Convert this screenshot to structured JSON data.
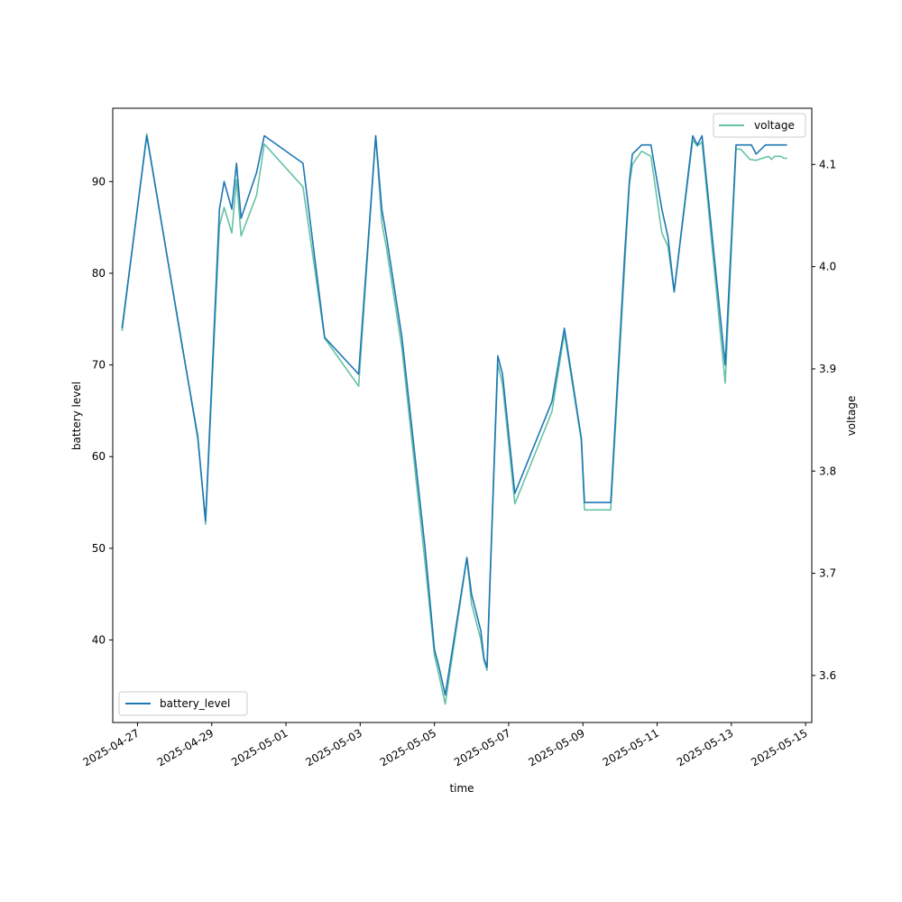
{
  "chart_data": {
    "type": "line",
    "xlabel": "time",
    "ylabel_left": "battery level",
    "ylabel_right": "voltage",
    "x_range": [
      "2025-04-26T08:00",
      "2025-05-15T04:00"
    ],
    "ylim_left": [
      31,
      98
    ],
    "ylim_right": [
      3.554,
      4.155
    ],
    "x_tick_labels": [
      "2025-04-27",
      "2025-04-29",
      "2025-05-01",
      "2025-05-03",
      "2025-05-05",
      "2025-05-07",
      "2025-05-09",
      "2025-05-11",
      "2025-05-13",
      "2025-05-15"
    ],
    "y_ticks_left": [
      40,
      50,
      60,
      70,
      80,
      90
    ],
    "y_ticks_right": [
      "3.6",
      "3.7",
      "3.8",
      "3.9",
      "4.0",
      "4.1"
    ],
    "grid": false,
    "series": [
      {
        "name": "battery_level",
        "axis": "left",
        "color": "#1f77b4",
        "legend_position": "lower-left",
        "points": [
          [
            "2025-04-26T14:00",
            74
          ],
          [
            "2025-04-27T06:00",
            95
          ],
          [
            "2025-04-28T05:00",
            72
          ],
          [
            "2025-04-28T08:00",
            69
          ],
          [
            "2025-04-28T15:00",
            62
          ],
          [
            "2025-04-28T20:00",
            53
          ],
          [
            "2025-04-29T05:00",
            87
          ],
          [
            "2025-04-29T08:00",
            90
          ],
          [
            "2025-04-29T13:00",
            87
          ],
          [
            "2025-04-29T16:00",
            92
          ],
          [
            "2025-04-29T19:00",
            86
          ],
          [
            "2025-04-30T05:00",
            91
          ],
          [
            "2025-04-30T10:00",
            95
          ],
          [
            "2025-05-01T11:00",
            92
          ],
          [
            "2025-05-02T01:00",
            73
          ],
          [
            "2025-05-02T23:00",
            69
          ],
          [
            "2025-05-03T10:00",
            95
          ],
          [
            "2025-05-03T14:00",
            87
          ],
          [
            "2025-05-03T17:00",
            84
          ],
          [
            "2025-05-04T03:00",
            73
          ],
          [
            "2025-05-04T18:00",
            50
          ],
          [
            "2025-05-05T00:00",
            39
          ],
          [
            "2025-05-05T03:00",
            37
          ],
          [
            "2025-05-05T07:00",
            34
          ],
          [
            "2025-05-05T21:00",
            49
          ],
          [
            "2025-05-06T00:00",
            45
          ],
          [
            "2025-05-06T06:00",
            41
          ],
          [
            "2025-05-06T08:00",
            38
          ],
          [
            "2025-05-06T10:00",
            37
          ],
          [
            "2025-05-06T17:00",
            71
          ],
          [
            "2025-05-06T20:00",
            69
          ],
          [
            "2025-05-07T04:00",
            56
          ],
          [
            "2025-05-08T04:00",
            66
          ],
          [
            "2025-05-08T12:00",
            74
          ],
          [
            "2025-05-08T23:00",
            62
          ],
          [
            "2025-05-09T01:00",
            55
          ],
          [
            "2025-05-09T18:00",
            55
          ],
          [
            "2025-05-10T03:00",
            82
          ],
          [
            "2025-05-10T06:00",
            90
          ],
          [
            "2025-05-10T08:00",
            93
          ],
          [
            "2025-05-10T14:00",
            94
          ],
          [
            "2025-05-10T20:00",
            94
          ],
          [
            "2025-05-11T03:00",
            87
          ],
          [
            "2025-05-11T07:00",
            84
          ],
          [
            "2025-05-11T11:00",
            78
          ],
          [
            "2025-05-11T23:00",
            95
          ],
          [
            "2025-05-12T02:00",
            94
          ],
          [
            "2025-05-12T05:00",
            95
          ],
          [
            "2025-05-12T20:00",
            70
          ],
          [
            "2025-05-13T03:00",
            94
          ],
          [
            "2025-05-13T13:00",
            94
          ],
          [
            "2025-05-13T16:00",
            93
          ],
          [
            "2025-05-13T22:00",
            94
          ],
          [
            "2025-05-14T12:00",
            94
          ]
        ]
      },
      {
        "name": "voltage",
        "axis": "right",
        "color": "#66c2a5",
        "legend_position": "upper-right",
        "points": [
          [
            "2025-04-26T14:00",
            3.937
          ],
          [
            "2025-04-27T06:00",
            4.13
          ],
          [
            "2025-04-28T05:00",
            3.92
          ],
          [
            "2025-04-28T08:00",
            3.895
          ],
          [
            "2025-04-28T15:00",
            3.835
          ],
          [
            "2025-04-28T20:00",
            3.748
          ],
          [
            "2025-04-29T05:00",
            4.04
          ],
          [
            "2025-04-29T08:00",
            4.058
          ],
          [
            "2025-04-29T13:00",
            4.033
          ],
          [
            "2025-04-29T16:00",
            4.085
          ],
          [
            "2025-04-29T19:00",
            4.03
          ],
          [
            "2025-04-30T05:00",
            4.07
          ],
          [
            "2025-04-30T10:00",
            4.12
          ],
          [
            "2025-05-01T11:00",
            4.078
          ],
          [
            "2025-05-02T01:00",
            3.93
          ],
          [
            "2025-05-02T23:00",
            3.883
          ],
          [
            "2025-05-03T10:00",
            4.128
          ],
          [
            "2025-05-03T14:00",
            4.043
          ],
          [
            "2025-05-03T17:00",
            4.018
          ],
          [
            "2025-05-04T03:00",
            3.92
          ],
          [
            "2025-05-04T18:00",
            3.71
          ],
          [
            "2025-05-05T00:00",
            3.62
          ],
          [
            "2025-05-05T03:00",
            3.6
          ],
          [
            "2025-05-05T07:00",
            3.572
          ],
          [
            "2025-05-05T21:00",
            3.715
          ],
          [
            "2025-05-06T00:00",
            3.67
          ],
          [
            "2025-05-06T06:00",
            3.635
          ],
          [
            "2025-05-06T08:00",
            3.615
          ],
          [
            "2025-05-06T10:00",
            3.605
          ],
          [
            "2025-05-06T17:00",
            3.905
          ],
          [
            "2025-05-06T20:00",
            3.885
          ],
          [
            "2025-05-07T04:00",
            3.768
          ],
          [
            "2025-05-08T04:00",
            3.858
          ],
          [
            "2025-05-08T12:00",
            3.935
          ],
          [
            "2025-05-08T23:00",
            3.83
          ],
          [
            "2025-05-09T01:00",
            3.762
          ],
          [
            "2025-05-09T18:00",
            3.762
          ],
          [
            "2025-05-10T03:00",
            4.0
          ],
          [
            "2025-05-10T06:00",
            4.08
          ],
          [
            "2025-05-10T08:00",
            4.1
          ],
          [
            "2025-05-10T14:00",
            4.113
          ],
          [
            "2025-05-10T20:00",
            4.108
          ],
          [
            "2025-05-11T03:00",
            4.033
          ],
          [
            "2025-05-11T07:00",
            4.02
          ],
          [
            "2025-05-11T11:00",
            3.975
          ],
          [
            "2025-05-11T23:00",
            4.124
          ],
          [
            "2025-05-12T02:00",
            4.118
          ],
          [
            "2025-05-12T05:00",
            4.122
          ],
          [
            "2025-05-12T20:00",
            3.886
          ],
          [
            "2025-05-13T03:00",
            4.115
          ],
          [
            "2025-05-13T06:00",
            4.115
          ],
          [
            "2025-05-13T12:00",
            4.105
          ],
          [
            "2025-05-13T16:00",
            4.104
          ],
          [
            "2025-05-13T20:00",
            4.106
          ],
          [
            "2025-05-14T00:00",
            4.108
          ],
          [
            "2025-05-14T02:00",
            4.105
          ],
          [
            "2025-05-14T04:00",
            4.108
          ],
          [
            "2025-05-14T08:00",
            4.108
          ],
          [
            "2025-05-14T10:00",
            4.106
          ],
          [
            "2025-05-14T12:00",
            4.106
          ]
        ]
      }
    ]
  }
}
